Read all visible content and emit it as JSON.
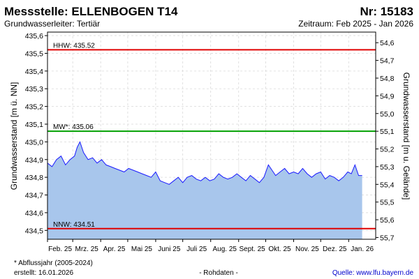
{
  "header": {
    "title": "Messstelle: ELLENBOGEN T14",
    "subtitle": "Grundwasserleiter: Tertiär",
    "station_number": "Nr: 15183",
    "period": "Zeitraum: Feb 2025 - Jan 2026"
  },
  "footer": {
    "note": "* Abflussjahr (2005-2024)",
    "created": "erstellt:  16.01.2026",
    "raw_data": "- Rohdaten -",
    "source": "Quelle: www.lfu.bayern.de"
  },
  "colors": {
    "line": "#1a1aff",
    "fill": "#a8c6ec",
    "threshold_red": "#e00000",
    "threshold_green": "#00a000",
    "grid": "#d9d9d9",
    "month_line": "#f0f0f0",
    "source_link": "#0000cc"
  },
  "chart_data": {
    "type": "area",
    "ylabel": "Grundwasserstand [m ü. NN]",
    "ylabel_right": "Grundwasserstand [m u. Gelände]",
    "ylim": [
      434.45,
      435.62
    ],
    "yticks": [
      "434,5",
      "434,6",
      "434,7",
      "434,8",
      "434,9",
      "435,0",
      "435,1",
      "435,2",
      "435,3",
      "435,4",
      "435,5",
      "435,6"
    ],
    "y2_ticks": [
      {
        "label": "54,6",
        "level": 435.56
      },
      {
        "label": "54,7",
        "level": 435.46
      },
      {
        "label": "54,8",
        "level": 435.36
      },
      {
        "label": "54,9",
        "level": 435.26
      },
      {
        "label": "55,0",
        "level": 435.16
      },
      {
        "label": "55,1",
        "level": 435.06
      },
      {
        "label": "55,2",
        "level": 434.96
      },
      {
        "label": "55,3",
        "level": 434.86
      },
      {
        "label": "55,4",
        "level": 434.76
      },
      {
        "label": "55,5",
        "level": 434.66
      },
      {
        "label": "55,6",
        "level": 434.56
      },
      {
        "label": "55,7",
        "level": 434.46
      }
    ],
    "xlim": [
      "2025-02-01",
      "2026-01-31"
    ],
    "months": [
      {
        "label": "Feb. 25",
        "date": "2025-02-01"
      },
      {
        "label": "Mrz. 25",
        "date": "2025-03-01"
      },
      {
        "label": "Apr. 25",
        "date": "2025-04-01"
      },
      {
        "label": "Mai 25",
        "date": "2025-05-01"
      },
      {
        "label": "Juni 25",
        "date": "2025-06-01"
      },
      {
        "label": "Juli 25",
        "date": "2025-07-01"
      },
      {
        "label": "Aug. 25",
        "date": "2025-08-01"
      },
      {
        "label": "Sept. 25",
        "date": "2025-09-01"
      },
      {
        "label": "Okt. 25",
        "date": "2025-10-01"
      },
      {
        "label": "Nov. 25",
        "date": "2025-11-01"
      },
      {
        "label": "Dez. 25",
        "date": "2025-12-01"
      },
      {
        "label": "Jan. 26",
        "date": "2026-01-01"
      }
    ],
    "thresholds": [
      {
        "label": "HHW: 435.52",
        "value": 435.52,
        "color": "red"
      },
      {
        "label": "MW*: 435.06",
        "value": 435.06,
        "color": "green"
      },
      {
        "label": "NNW: 434.51",
        "value": 434.51,
        "color": "red"
      }
    ],
    "series": [
      {
        "x": [
          "2025-02-01",
          "2025-02-06",
          "2025-02-11",
          "2025-02-16",
          "2025-02-21",
          "2025-02-26",
          "2025-03-03",
          "2025-03-06",
          "2025-03-09",
          "2025-03-13",
          "2025-03-18",
          "2025-03-23",
          "2025-03-28",
          "2025-04-02",
          "2025-04-07",
          "2025-04-12",
          "2025-04-17",
          "2025-04-22",
          "2025-04-27",
          "2025-05-02",
          "2025-05-07",
          "2025-05-12",
          "2025-05-17",
          "2025-05-22",
          "2025-05-27",
          "2025-06-01",
          "2025-06-06",
          "2025-06-11",
          "2025-06-16",
          "2025-06-21",
          "2025-06-26",
          "2025-07-01",
          "2025-07-06",
          "2025-07-11",
          "2025-07-16",
          "2025-07-21",
          "2025-07-26",
          "2025-07-31",
          "2025-08-05",
          "2025-08-10",
          "2025-08-15",
          "2025-08-20",
          "2025-08-25",
          "2025-08-30",
          "2025-09-04",
          "2025-09-09",
          "2025-09-14",
          "2025-09-19",
          "2025-09-24",
          "2025-09-29",
          "2025-10-04",
          "2025-10-08",
          "2025-10-12",
          "2025-10-17",
          "2025-10-22",
          "2025-10-27",
          "2025-11-01",
          "2025-11-06",
          "2025-11-11",
          "2025-11-16",
          "2025-11-21",
          "2025-11-26",
          "2025-12-01",
          "2025-12-06",
          "2025-12-11",
          "2025-12-16",
          "2025-12-21",
          "2025-12-26",
          "2025-12-31",
          "2026-01-04",
          "2026-01-08",
          "2026-01-12",
          "2026-01-16"
        ],
        "y": [
          434.88,
          434.86,
          434.9,
          434.92,
          434.87,
          434.9,
          434.92,
          434.97,
          435.0,
          434.94,
          434.9,
          434.91,
          434.88,
          434.9,
          434.87,
          434.86,
          434.85,
          434.84,
          434.83,
          434.85,
          434.84,
          434.83,
          434.82,
          434.81,
          434.8,
          434.83,
          434.78,
          434.77,
          434.76,
          434.78,
          434.8,
          434.77,
          434.8,
          434.81,
          434.79,
          434.78,
          434.8,
          434.78,
          434.79,
          434.82,
          434.8,
          434.79,
          434.8,
          434.82,
          434.8,
          434.78,
          434.81,
          434.79,
          434.77,
          434.8,
          434.87,
          434.84,
          434.81,
          434.83,
          434.85,
          434.82,
          434.83,
          434.82,
          434.85,
          434.82,
          434.8,
          434.82,
          434.83,
          434.79,
          434.81,
          434.8,
          434.78,
          434.8,
          434.83,
          434.82,
          434.87,
          434.81,
          434.81
        ]
      }
    ]
  }
}
